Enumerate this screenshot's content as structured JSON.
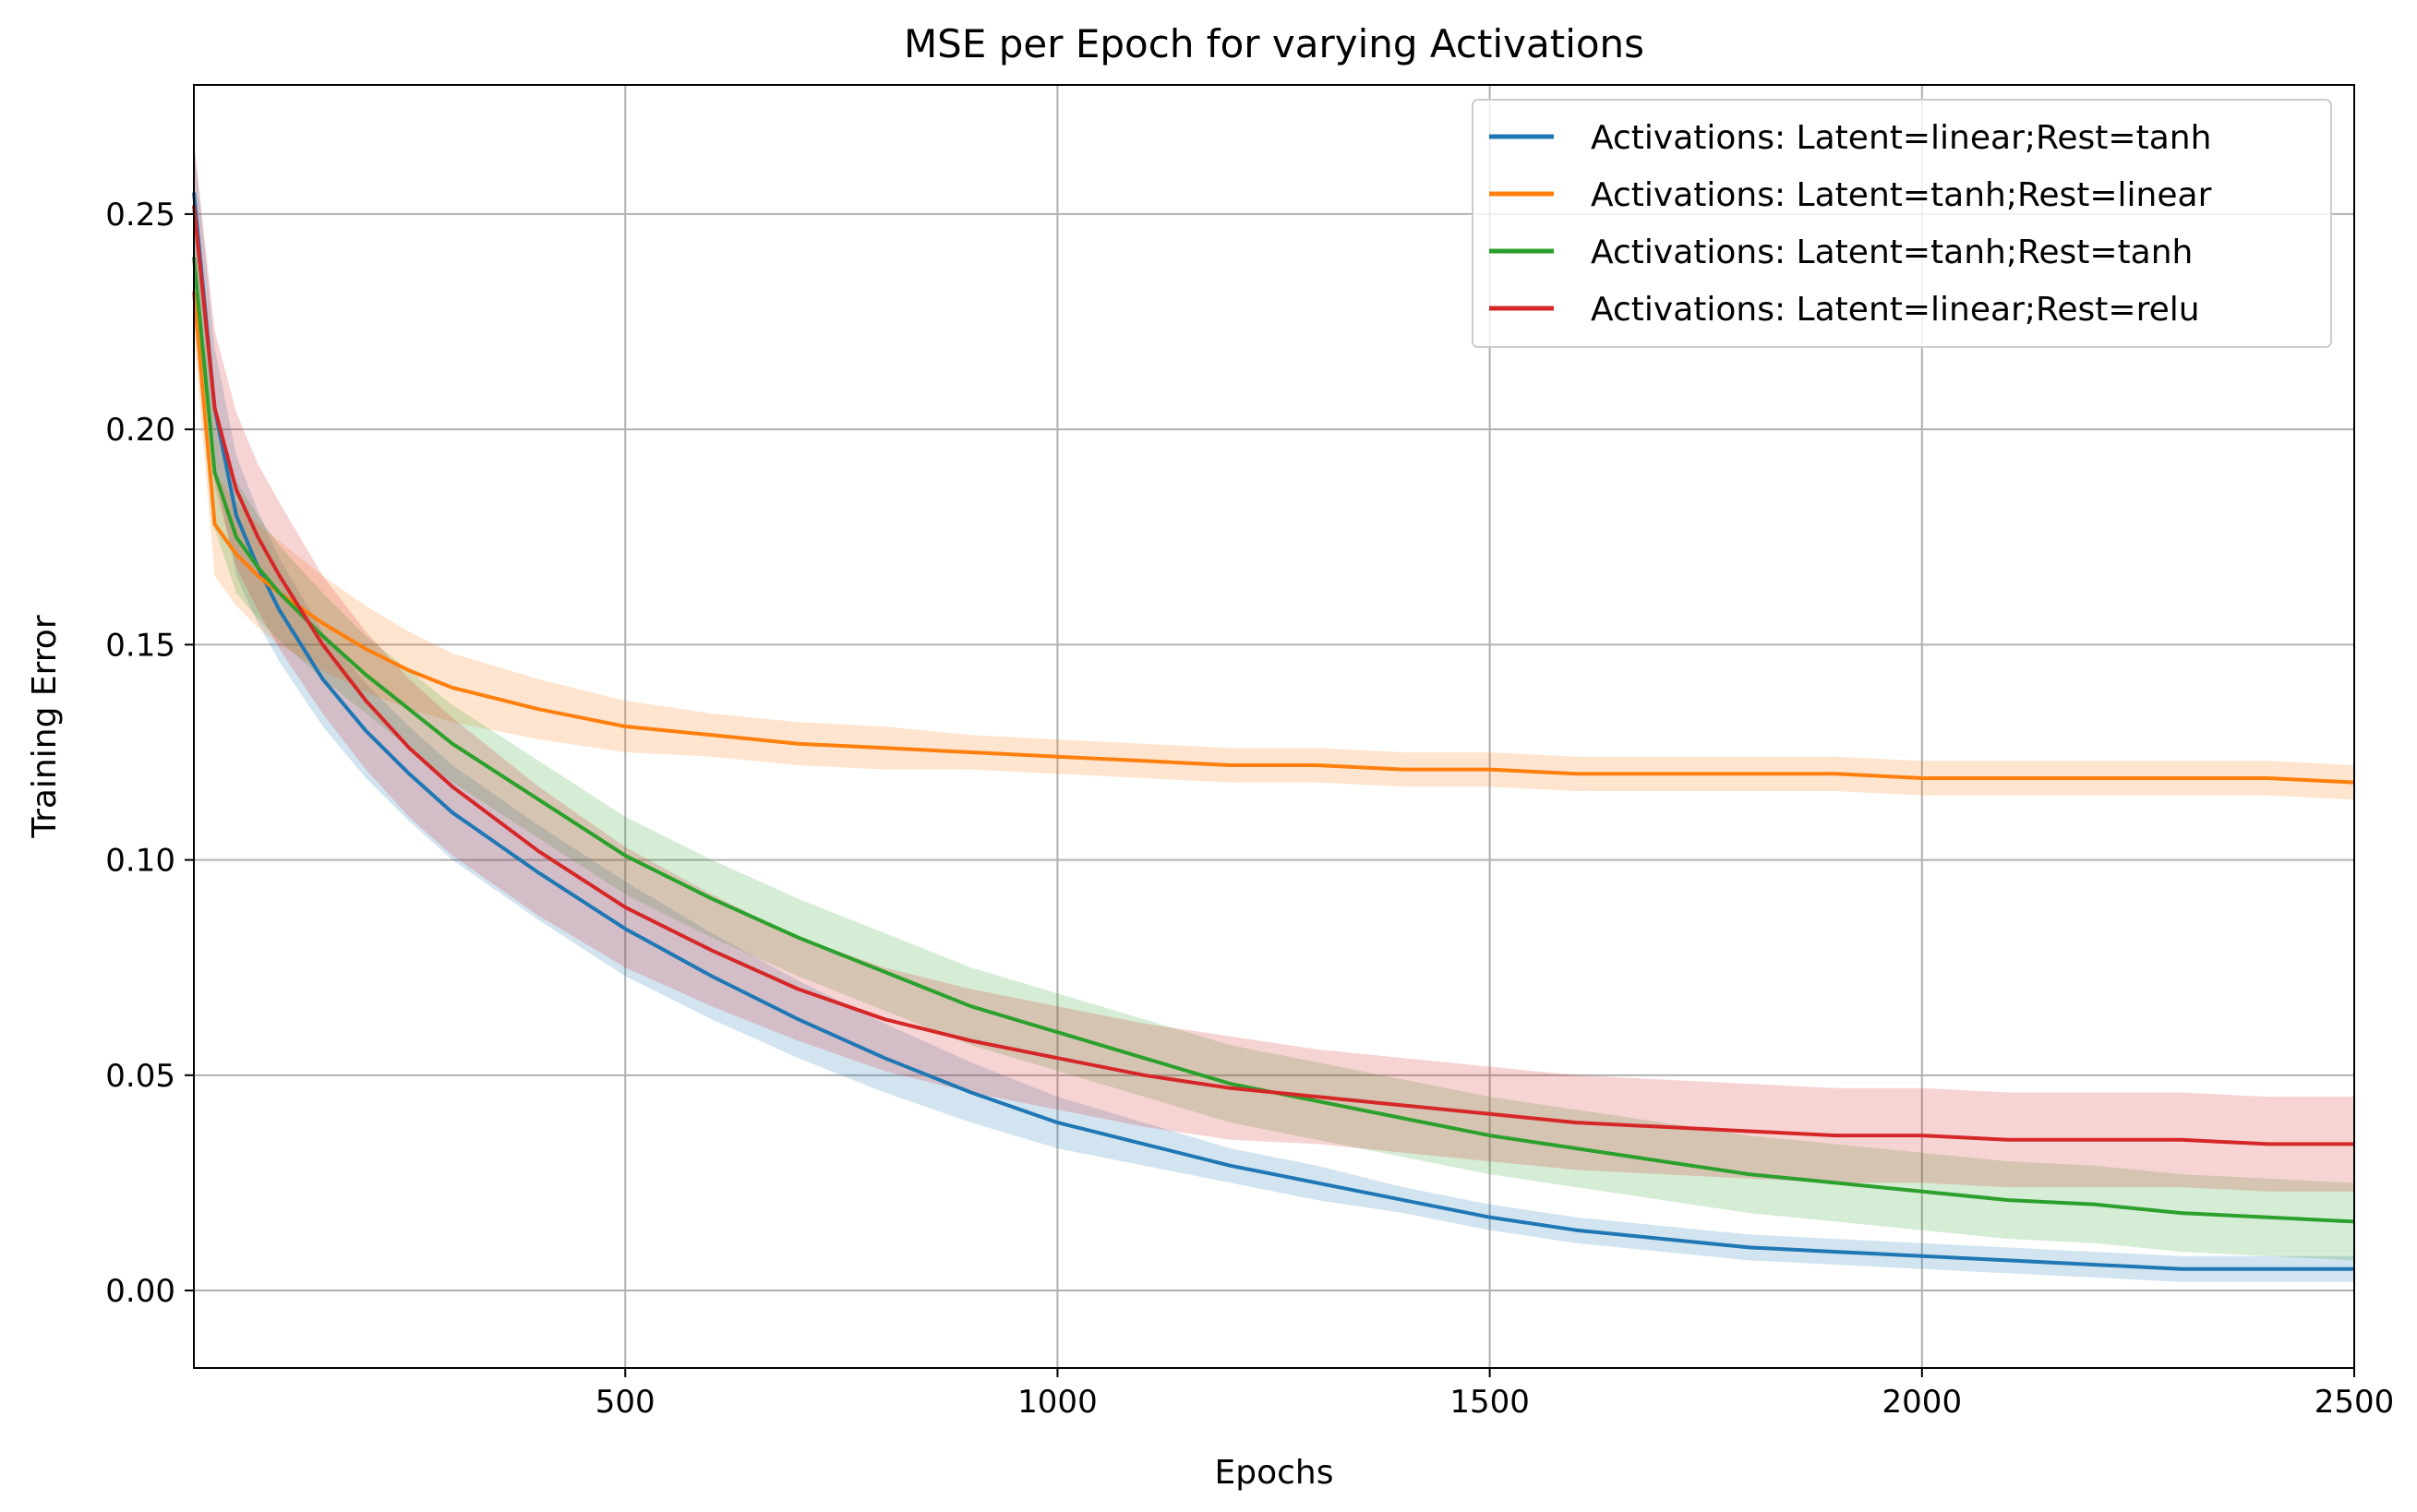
{
  "chart_data": {
    "type": "line",
    "title": "MSE per Epoch for varying Activations",
    "xlabel": "Epochs",
    "ylabel": "Training Error",
    "xlim": [
      1,
      2500
    ],
    "ylim": [
      -0.018,
      0.28
    ],
    "xticks": [
      500,
      1000,
      1500,
      2000,
      2500
    ],
    "xtick_labels": [
      "500",
      "1000",
      "1500",
      "2000",
      "2500"
    ],
    "yticks": [
      0.0,
      0.05,
      0.1,
      0.15,
      0.2,
      0.25
    ],
    "ytick_labels": [
      "0.00",
      "0.05",
      "0.10",
      "0.15",
      "0.20",
      "0.25"
    ],
    "grid": true,
    "legend_position": "top-right",
    "series": [
      {
        "name": "Activations: Latent=linear;Rest=tanh",
        "color": "#1f77b4",
        "x": [
          1,
          25,
          50,
          75,
          100,
          150,
          200,
          250,
          300,
          400,
          500,
          600,
          700,
          800,
          900,
          1000,
          1100,
          1200,
          1300,
          1400,
          1500,
          1600,
          1700,
          1800,
          1900,
          2000,
          2100,
          2200,
          2300,
          2400,
          2500
        ],
        "y": [
          0.255,
          0.205,
          0.18,
          0.168,
          0.158,
          0.142,
          0.13,
          0.12,
          0.111,
          0.097,
          0.084,
          0.073,
          0.063,
          0.054,
          0.046,
          0.039,
          0.034,
          0.029,
          0.025,
          0.021,
          0.017,
          0.014,
          0.012,
          0.01,
          0.009,
          0.008,
          0.007,
          0.006,
          0.005,
          0.005,
          0.005
        ],
        "band": [
          0.012,
          0.014,
          0.014,
          0.013,
          0.012,
          0.011,
          0.011,
          0.011,
          0.011,
          0.011,
          0.011,
          0.01,
          0.009,
          0.008,
          0.007,
          0.006,
          0.005,
          0.004,
          0.004,
          0.003,
          0.003,
          0.003,
          0.003,
          0.003,
          0.003,
          0.003,
          0.003,
          0.003,
          0.003,
          0.003,
          0.003
        ]
      },
      {
        "name": "Activations: Latent=tanh;Rest=linear",
        "color": "#ff7f0e",
        "x": [
          1,
          25,
          50,
          75,
          100,
          150,
          200,
          250,
          300,
          400,
          500,
          600,
          700,
          800,
          900,
          1000,
          1100,
          1200,
          1300,
          1400,
          1500,
          1600,
          1700,
          1800,
          1900,
          2000,
          2100,
          2200,
          2300,
          2400,
          2500
        ],
        "y": [
          0.232,
          0.178,
          0.171,
          0.166,
          0.162,
          0.155,
          0.149,
          0.144,
          0.14,
          0.135,
          0.131,
          0.129,
          0.127,
          0.126,
          0.125,
          0.124,
          0.123,
          0.122,
          0.122,
          0.121,
          0.121,
          0.12,
          0.12,
          0.12,
          0.12,
          0.119,
          0.119,
          0.119,
          0.119,
          0.119,
          0.118
        ],
        "band": [
          0.01,
          0.012,
          0.012,
          0.012,
          0.012,
          0.011,
          0.01,
          0.009,
          0.008,
          0.007,
          0.006,
          0.005,
          0.005,
          0.005,
          0.004,
          0.004,
          0.004,
          0.004,
          0.004,
          0.004,
          0.004,
          0.004,
          0.004,
          0.004,
          0.004,
          0.004,
          0.004,
          0.004,
          0.004,
          0.004,
          0.004
        ]
      },
      {
        "name": "Activations: Latent=tanh;Rest=tanh",
        "color": "#2ca02c",
        "x": [
          1,
          25,
          50,
          75,
          100,
          150,
          200,
          250,
          300,
          400,
          500,
          600,
          700,
          800,
          900,
          1000,
          1100,
          1200,
          1300,
          1400,
          1500,
          1600,
          1700,
          1800,
          1900,
          2000,
          2100,
          2200,
          2300,
          2400,
          2500
        ],
        "y": [
          0.24,
          0.19,
          0.175,
          0.168,
          0.162,
          0.152,
          0.143,
          0.135,
          0.127,
          0.114,
          0.101,
          0.091,
          0.082,
          0.074,
          0.066,
          0.06,
          0.054,
          0.048,
          0.044,
          0.04,
          0.036,
          0.033,
          0.03,
          0.027,
          0.025,
          0.023,
          0.021,
          0.02,
          0.018,
          0.017,
          0.016
        ],
        "band": [
          0.012,
          0.013,
          0.013,
          0.012,
          0.011,
          0.01,
          0.009,
          0.009,
          0.009,
          0.009,
          0.009,
          0.009,
          0.009,
          0.009,
          0.009,
          0.009,
          0.009,
          0.009,
          0.009,
          0.009,
          0.009,
          0.009,
          0.009,
          0.009,
          0.009,
          0.009,
          0.009,
          0.009,
          0.009,
          0.009,
          0.009
        ]
      },
      {
        "name": "Activations: Latent=linear;Rest=relu",
        "color": "#d62728",
        "x": [
          1,
          25,
          50,
          75,
          100,
          150,
          200,
          250,
          300,
          400,
          500,
          600,
          700,
          800,
          900,
          1000,
          1100,
          1200,
          1300,
          1400,
          1500,
          1600,
          1700,
          1800,
          1900,
          2000,
          2100,
          2200,
          2300,
          2400,
          2500
        ],
        "y": [
          0.252,
          0.205,
          0.186,
          0.175,
          0.166,
          0.15,
          0.137,
          0.126,
          0.117,
          0.102,
          0.089,
          0.079,
          0.07,
          0.063,
          0.058,
          0.054,
          0.05,
          0.047,
          0.045,
          0.043,
          0.041,
          0.039,
          0.038,
          0.037,
          0.036,
          0.036,
          0.035,
          0.035,
          0.035,
          0.034,
          0.034
        ],
        "band": [
          0.015,
          0.018,
          0.018,
          0.017,
          0.017,
          0.016,
          0.016,
          0.016,
          0.016,
          0.015,
          0.014,
          0.013,
          0.012,
          0.012,
          0.012,
          0.012,
          0.012,
          0.012,
          0.011,
          0.011,
          0.011,
          0.011,
          0.011,
          0.011,
          0.011,
          0.011,
          0.011,
          0.011,
          0.011,
          0.011,
          0.011
        ]
      }
    ]
  }
}
